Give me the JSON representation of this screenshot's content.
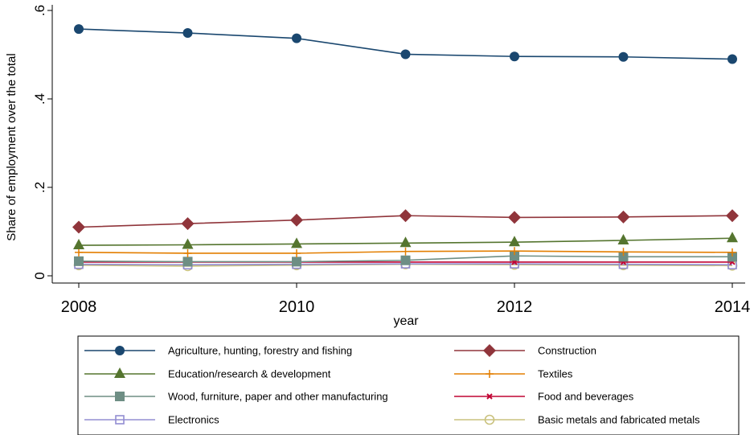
{
  "chart_data": {
    "type": "line",
    "title": "",
    "xlabel": "year",
    "ylabel": "Share of employment over the total",
    "x": [
      2008,
      2009,
      2010,
      2011,
      2012,
      2013,
      2014
    ],
    "xlim": [
      2008,
      2014
    ],
    "ylim": [
      0,
      0.6
    ],
    "x_ticks": [
      2008,
      2010,
      2012,
      2014
    ],
    "x_tick_labels": [
      "2008",
      "2010",
      "2012",
      "2014"
    ],
    "y_ticks": [
      0,
      0.2,
      0.4,
      0.6
    ],
    "y_tick_labels": [
      "0",
      ".2",
      ".4",
      ".6"
    ],
    "grid": false,
    "legend_position": "bottom",
    "series": [
      {
        "name": "Agriculture, hunting, forestry and fishing",
        "color": "#1a476f",
        "marker": "circle",
        "values": [
          0.558,
          0.549,
          0.537,
          0.501,
          0.496,
          0.495,
          0.49
        ]
      },
      {
        "name": "Construction",
        "color": "#90353b",
        "marker": "diamond",
        "values": [
          0.11,
          0.118,
          0.126,
          0.136,
          0.132,
          0.133,
          0.136
        ]
      },
      {
        "name": "Education/research & development",
        "color": "#55752f",
        "marker": "triangle",
        "values": [
          0.069,
          0.07,
          0.072,
          0.074,
          0.076,
          0.08,
          0.085
        ]
      },
      {
        "name": "Textiles",
        "color": "#e37e00",
        "marker": "plus",
        "values": [
          0.053,
          0.051,
          0.051,
          0.055,
          0.056,
          0.054,
          0.053
        ]
      },
      {
        "name": "Wood, furniture, paper and other manufacturing",
        "color": "#6e8e84",
        "marker": "square",
        "values": [
          0.033,
          0.032,
          0.032,
          0.035,
          0.045,
          0.043,
          0.043
        ]
      },
      {
        "name": "Food and beverages",
        "color": "#c10534",
        "marker": "x",
        "values": [
          0.031,
          0.031,
          0.031,
          0.031,
          0.031,
          0.031,
          0.031
        ]
      },
      {
        "name": "Electronics",
        "color": "#938dd2",
        "marker": "hollow-square",
        "values": [
          0.026,
          0.025,
          0.026,
          0.027,
          0.027,
          0.026,
          0.025
        ]
      },
      {
        "name": "Basic metals and fabricated metals",
        "color": "#cac27e",
        "marker": "hollow-circle",
        "values": [
          0.024,
          0.022,
          0.024,
          0.026,
          0.025,
          0.024,
          0.023
        ]
      }
    ]
  }
}
